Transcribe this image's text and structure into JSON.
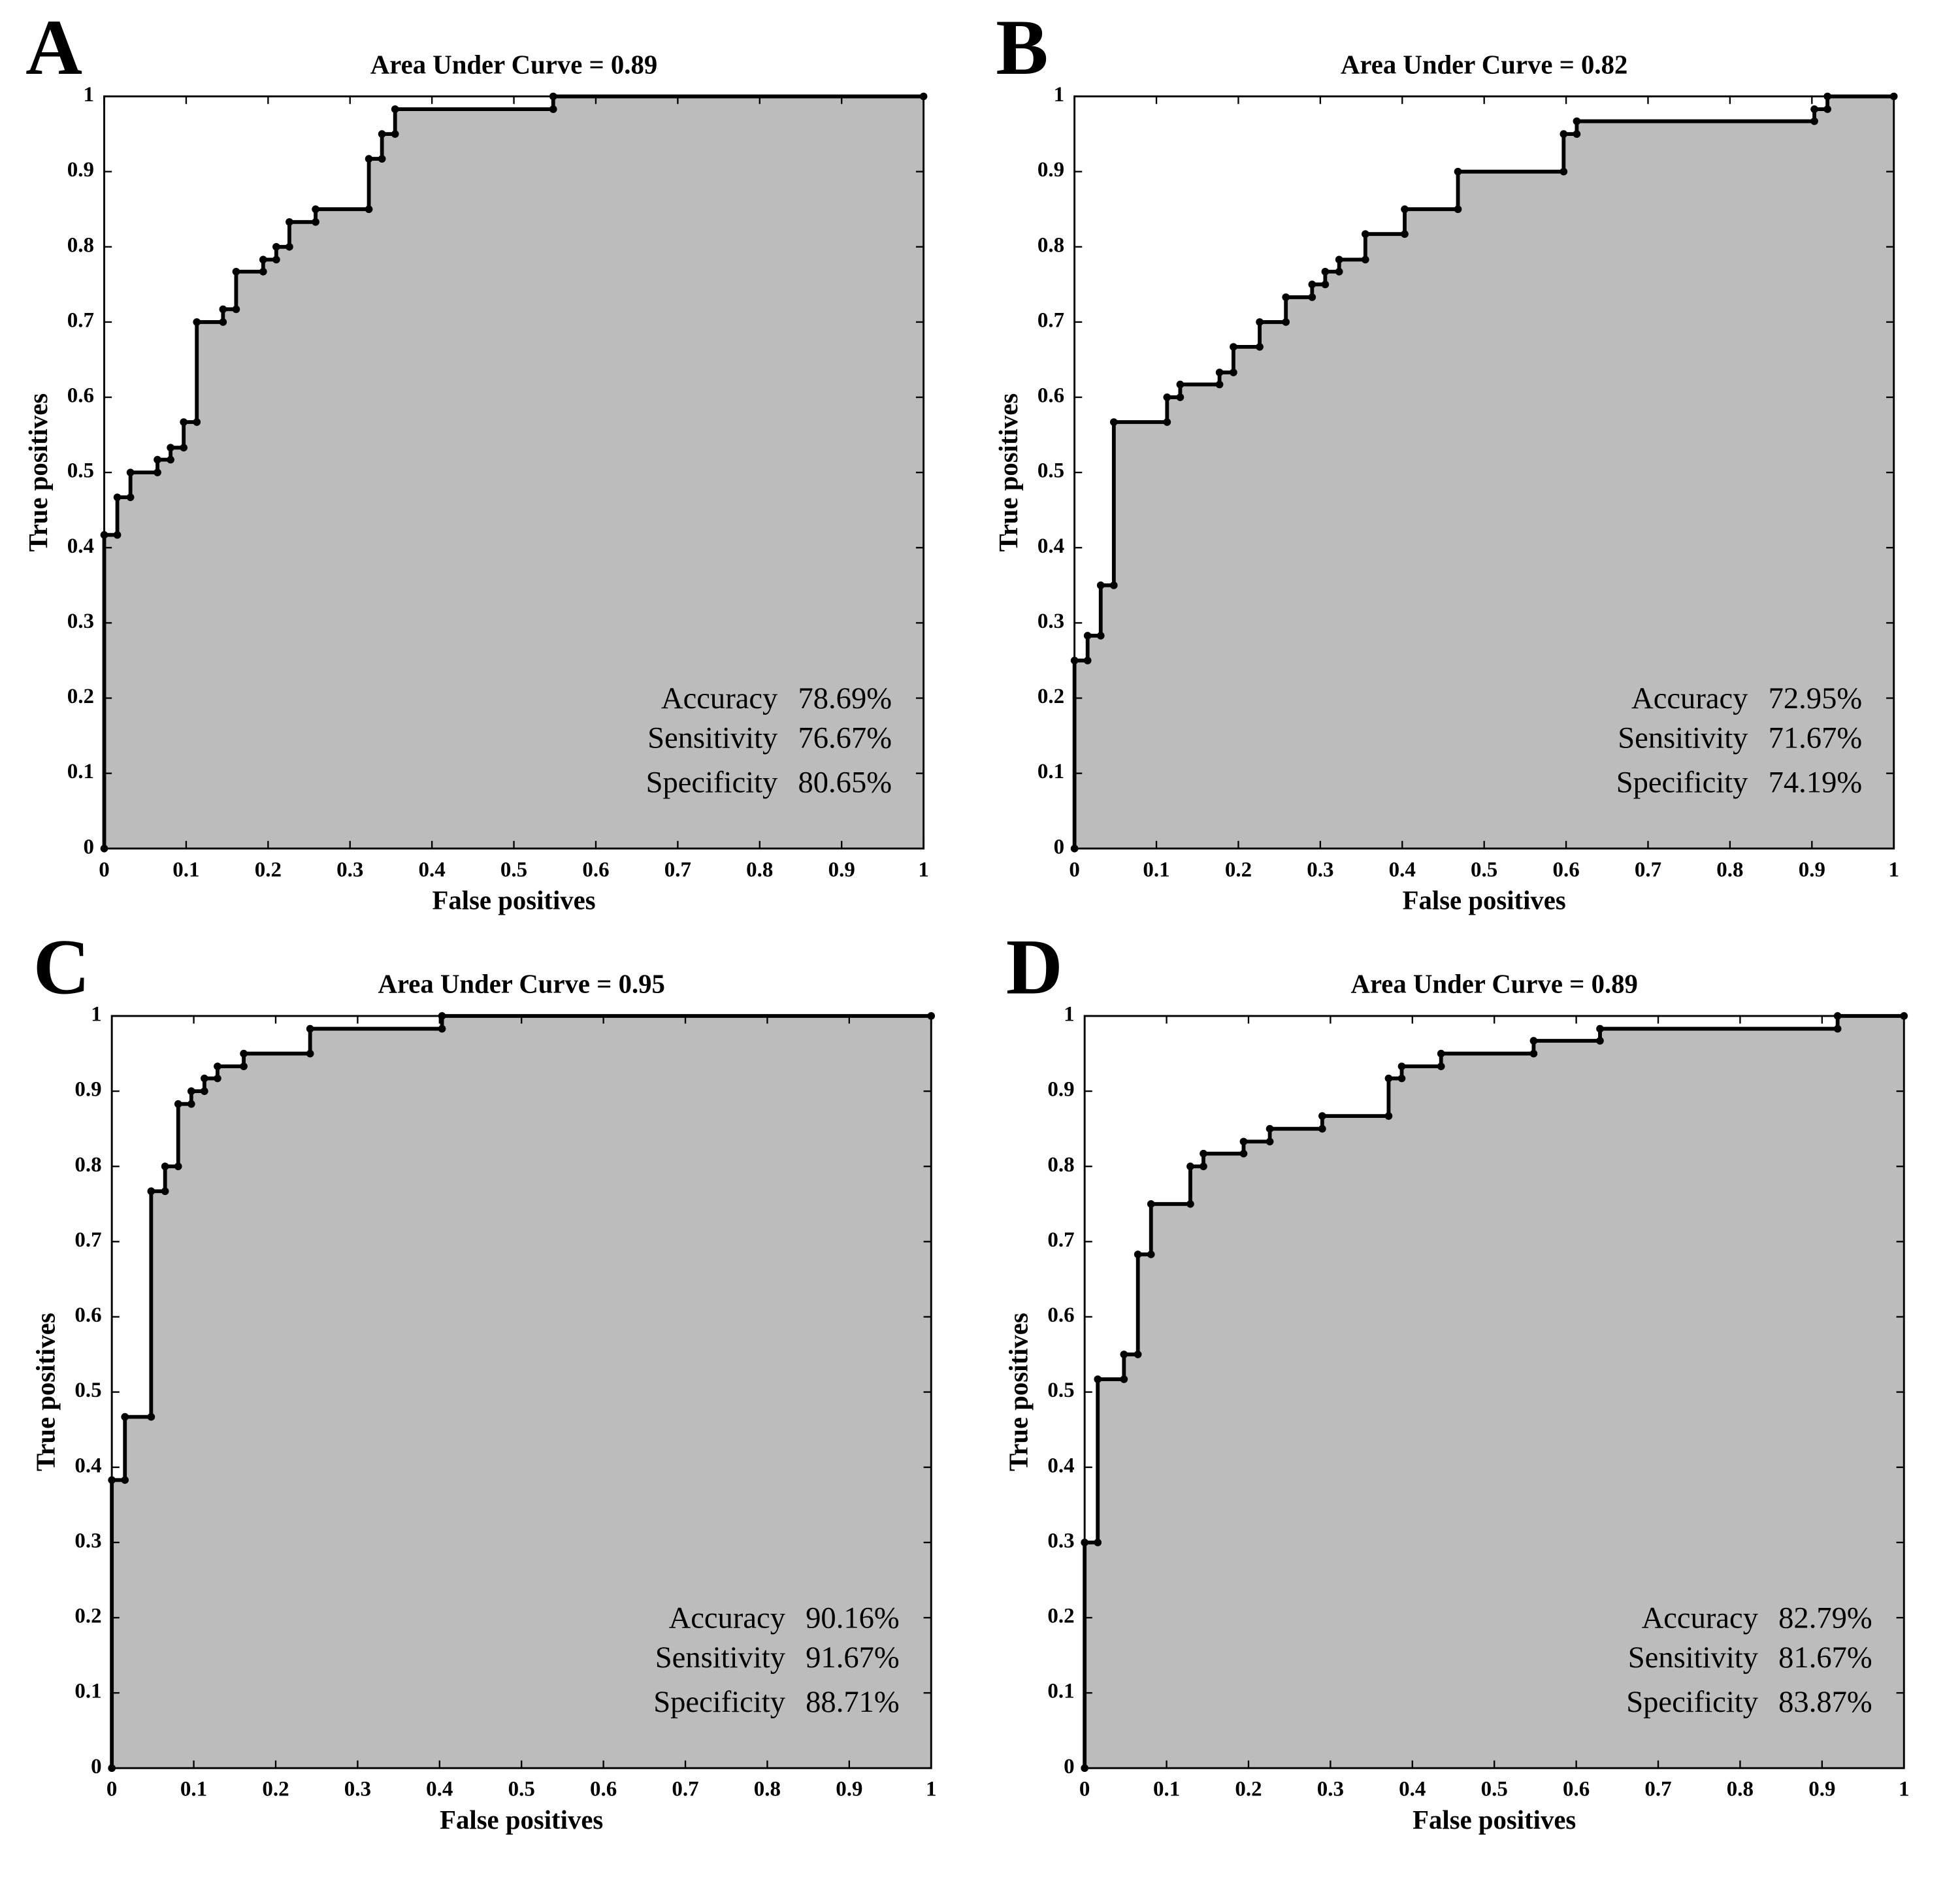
{
  "chart_data": [
    {
      "type": "line",
      "panel_label": "A",
      "title": "Area Under Curve = 0.89",
      "xlabel": "False positives",
      "ylabel": "True positives",
      "x": [
        0,
        0,
        0.016,
        0.016,
        0.032,
        0.032,
        0.065,
        0.065,
        0.081,
        0.081,
        0.097,
        0.097,
        0.113,
        0.113,
        0.145,
        0.145,
        0.161,
        0.161,
        0.194,
        0.194,
        0.21,
        0.21,
        0.226,
        0.226,
        0.258,
        0.258,
        0.323,
        0.323,
        0.339,
        0.339,
        0.355,
        0.355,
        0.548,
        0.548,
        1
      ],
      "y": [
        0,
        0.417,
        0.417,
        0.467,
        0.467,
        0.5,
        0.5,
        0.517,
        0.517,
        0.533,
        0.533,
        0.567,
        0.567,
        0.7,
        0.7,
        0.717,
        0.717,
        0.767,
        0.767,
        0.783,
        0.783,
        0.8,
        0.8,
        0.833,
        0.833,
        0.85,
        0.85,
        0.917,
        0.917,
        0.95,
        0.95,
        0.983,
        0.983,
        1,
        1
      ],
      "color": "#000000",
      "fill": "#bdbcbd",
      "xlim": [
        0,
        1
      ],
      "ylim": [
        0,
        1
      ],
      "xticks": [
        0,
        0.1,
        0.2,
        0.3,
        0.4,
        0.5,
        0.6,
        0.7,
        0.8,
        0.9,
        1
      ],
      "yticks": [
        0,
        0.1,
        0.2,
        0.3,
        0.4,
        0.5,
        0.6,
        0.7,
        0.8,
        0.9,
        1
      ],
      "stats": [
        {
          "label": "Accuracy",
          "value": "78.69%"
        },
        {
          "label": "Sensitivity",
          "value": "76.67%"
        },
        {
          "label": "Specificity",
          "value": "80.65%"
        }
      ]
    },
    {
      "type": "line",
      "panel_label": "B",
      "title": "Area Under Curve = 0.82",
      "xlabel": "False positives",
      "ylabel": "True positives",
      "x": [
        0,
        0,
        0.016,
        0.016,
        0.032,
        0.032,
        0.048,
        0.048,
        0.113,
        0.113,
        0.129,
        0.129,
        0.177,
        0.177,
        0.194,
        0.194,
        0.226,
        0.226,
        0.258,
        0.258,
        0.29,
        0.29,
        0.306,
        0.306,
        0.323,
        0.323,
        0.355,
        0.355,
        0.403,
        0.403,
        0.468,
        0.468,
        0.597,
        0.597,
        0.613,
        0.613,
        0.903,
        0.903,
        0.919,
        0.919,
        1
      ],
      "y": [
        0,
        0.25,
        0.25,
        0.283,
        0.283,
        0.35,
        0.35,
        0.567,
        0.567,
        0.6,
        0.6,
        0.617,
        0.617,
        0.633,
        0.633,
        0.667,
        0.667,
        0.7,
        0.7,
        0.733,
        0.733,
        0.75,
        0.75,
        0.767,
        0.767,
        0.783,
        0.783,
        0.817,
        0.817,
        0.85,
        0.85,
        0.9,
        0.9,
        0.95,
        0.95,
        0.967,
        0.967,
        0.983,
        0.983,
        1,
        1
      ],
      "color": "#000000",
      "fill": "#bdbcbd",
      "xlim": [
        0,
        1
      ],
      "ylim": [
        0,
        1
      ],
      "xticks": [
        0,
        0.1,
        0.2,
        0.3,
        0.4,
        0.5,
        0.6,
        0.7,
        0.8,
        0.9,
        1
      ],
      "yticks": [
        0,
        0.1,
        0.2,
        0.3,
        0.4,
        0.5,
        0.6,
        0.7,
        0.8,
        0.9,
        1
      ],
      "stats": [
        {
          "label": "Accuracy",
          "value": "72.95%"
        },
        {
          "label": "Sensitivity",
          "value": "71.67%"
        },
        {
          "label": "Specificity",
          "value": "74.19%"
        }
      ]
    },
    {
      "type": "line",
      "panel_label": "C",
      "title": "Area Under Curve = 0.95",
      "xlabel": "False positives",
      "ylabel": "True positives",
      "x": [
        0,
        0,
        0.016,
        0.016,
        0.048,
        0.048,
        0.065,
        0.065,
        0.081,
        0.081,
        0.097,
        0.097,
        0.113,
        0.113,
        0.129,
        0.129,
        0.161,
        0.161,
        0.242,
        0.242,
        0.403,
        0.403,
        1
      ],
      "y": [
        0,
        0.383,
        0.383,
        0.467,
        0.467,
        0.767,
        0.767,
        0.8,
        0.8,
        0.883,
        0.883,
        0.9,
        0.9,
        0.917,
        0.917,
        0.933,
        0.933,
        0.95,
        0.95,
        0.983,
        0.983,
        1,
        1
      ],
      "color": "#000000",
      "fill": "#bdbcbd",
      "xlim": [
        0,
        1
      ],
      "ylim": [
        0,
        1
      ],
      "xticks": [
        0,
        0.1,
        0.2,
        0.3,
        0.4,
        0.5,
        0.6,
        0.7,
        0.8,
        0.9,
        1
      ],
      "yticks": [
        0,
        0.1,
        0.2,
        0.3,
        0.4,
        0.5,
        0.6,
        0.7,
        0.8,
        0.9,
        1
      ],
      "stats": [
        {
          "label": "Accuracy",
          "value": "90.16%"
        },
        {
          "label": "Sensitivity",
          "value": "91.67%"
        },
        {
          "label": "Specificity",
          "value": "88.71%"
        }
      ]
    },
    {
      "type": "line",
      "panel_label": "D",
      "title": "Area Under Curve = 0.89",
      "xlabel": "False positives",
      "ylabel": "True positives",
      "x": [
        0,
        0,
        0.016,
        0.016,
        0.048,
        0.048,
        0.065,
        0.065,
        0.081,
        0.081,
        0.129,
        0.129,
        0.145,
        0.145,
        0.194,
        0.194,
        0.226,
        0.226,
        0.29,
        0.29,
        0.371,
        0.371,
        0.387,
        0.387,
        0.435,
        0.435,
        0.548,
        0.548,
        0.629,
        0.629,
        0.919,
        0.919,
        1
      ],
      "y": [
        0,
        0.3,
        0.3,
        0.517,
        0.517,
        0.55,
        0.55,
        0.683,
        0.683,
        0.75,
        0.75,
        0.8,
        0.8,
        0.817,
        0.817,
        0.833,
        0.833,
        0.85,
        0.85,
        0.867,
        0.867,
        0.917,
        0.917,
        0.933,
        0.933,
        0.95,
        0.95,
        0.967,
        0.967,
        0.983,
        0.983,
        1,
        1
      ],
      "color": "#000000",
      "fill": "#bdbcbd",
      "xlim": [
        0,
        1
      ],
      "ylim": [
        0,
        1
      ],
      "xticks": [
        0,
        0.1,
        0.2,
        0.3,
        0.4,
        0.5,
        0.6,
        0.7,
        0.8,
        0.9,
        1
      ],
      "yticks": [
        0,
        0.1,
        0.2,
        0.3,
        0.4,
        0.5,
        0.6,
        0.7,
        0.8,
        0.9,
        1
      ],
      "stats": [
        {
          "label": "Accuracy",
          "value": "82.79%"
        },
        {
          "label": "Sensitivity",
          "value": "81.67%"
        },
        {
          "label": "Specificity",
          "value": "83.87%"
        }
      ]
    }
  ]
}
